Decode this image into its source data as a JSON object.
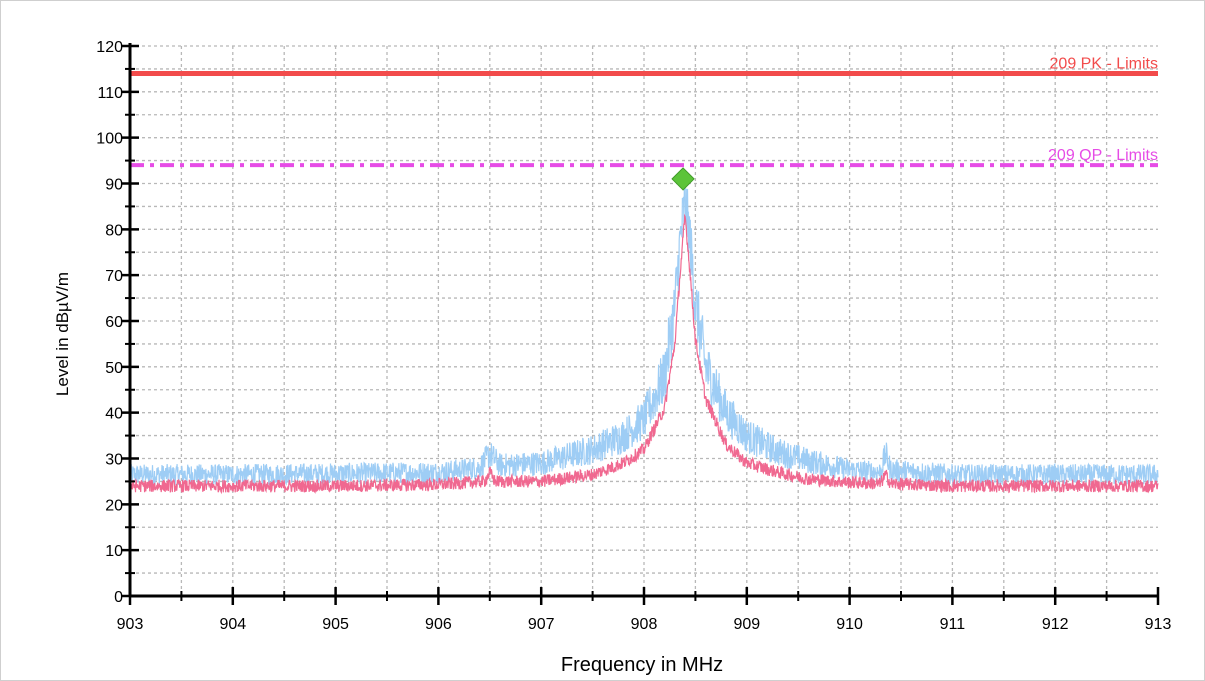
{
  "chart_data": {
    "type": "line",
    "xlabel": "Frequency in MHz",
    "ylabel": "Level in dBµV/m",
    "xlim": [
      903,
      913
    ],
    "ylim": [
      0,
      120
    ],
    "x_ticks": [
      903,
      904,
      905,
      906,
      907,
      908,
      909,
      910,
      911,
      912,
      913
    ],
    "y_ticks": [
      0,
      10,
      20,
      30,
      40,
      50,
      60,
      70,
      80,
      90,
      100,
      110,
      120
    ],
    "grid": true,
    "limits": [
      {
        "label": "209 PK - Limits",
        "y": 114,
        "color": "#f24b4b",
        "style": "solid"
      },
      {
        "label": "209 QP - Limits",
        "y": 94,
        "color": "#e64ce6",
        "style": "dashdot"
      }
    ],
    "traces": [
      {
        "color": "#9ecdf5",
        "x": [
          903.0,
          904.0,
          905.0,
          906.0,
          906.4,
          906.5,
          906.6,
          907.0,
          907.5,
          907.8,
          908.0,
          908.2,
          908.3,
          908.35,
          908.4,
          908.45,
          908.5,
          908.6,
          908.8,
          909.0,
          909.3,
          909.6,
          910.0,
          910.3,
          910.35,
          910.4,
          911.0,
          912.0,
          913.0
        ],
        "y": [
          26.5,
          26.5,
          26.7,
          27.0,
          28.0,
          31.0,
          28.5,
          29.0,
          32.0,
          35.0,
          38.5,
          48.0,
          63.0,
          77.0,
          86.0,
          77.0,
          64.0,
          50.0,
          40.0,
          35.0,
          31.5,
          29.5,
          27.5,
          27.0,
          31.0,
          27.5,
          26.5,
          26.5,
          26.5
        ]
      },
      {
        "color": "#f06890",
        "x": [
          903.0,
          904.0,
          905.0,
          906.0,
          906.45,
          906.5,
          906.55,
          907.0,
          907.5,
          907.8,
          908.0,
          908.2,
          908.3,
          908.35,
          908.4,
          908.45,
          908.5,
          908.6,
          908.8,
          909.0,
          909.3,
          909.6,
          910.0,
          910.3,
          910.35,
          910.4,
          911.0,
          912.0,
          913.0
        ],
        "y": [
          24.0,
          24.0,
          24.0,
          24.3,
          25.0,
          27.0,
          25.0,
          25.0,
          26.5,
          29.0,
          32.0,
          41.0,
          55.0,
          70.0,
          83.0,
          70.0,
          56.0,
          43.0,
          33.0,
          29.0,
          27.0,
          25.5,
          24.8,
          24.5,
          26.5,
          24.5,
          24.0,
          24.0,
          24.0
        ]
      }
    ],
    "marker": {
      "x": 908.38,
      "y": 91,
      "color": "#5cc43a",
      "shape": "diamond"
    }
  }
}
